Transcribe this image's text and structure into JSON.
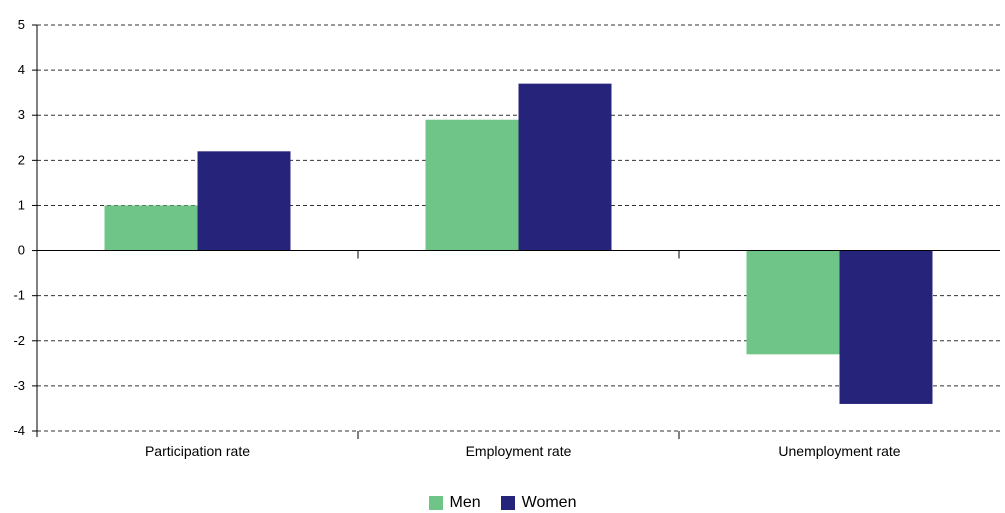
{
  "chart_data": {
    "type": "bar",
    "categories": [
      "Participation rate",
      "Employment rate",
      "Unemployment rate"
    ],
    "series": [
      {
        "name": "Men",
        "values": [
          1.0,
          2.9,
          -2.3
        ],
        "color": "#6fc487"
      },
      {
        "name": "Women",
        "values": [
          2.2,
          3.7,
          -3.4
        ],
        "color": "#26247a"
      }
    ],
    "ylim": [
      -4,
      5
    ],
    "yticks": [
      5,
      4,
      3,
      2,
      1,
      0,
      -1,
      -2,
      -3,
      -4
    ],
    "grid": true,
    "legend_position": "bottom-center",
    "title": "",
    "xlabel": "",
    "ylabel": ""
  },
  "legend": {
    "men": "Men",
    "women": "Women",
    "men_color": "#6fc487",
    "women_color": "#26247a"
  }
}
